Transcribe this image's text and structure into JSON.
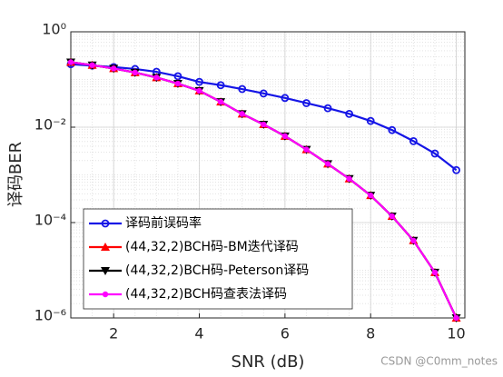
{
  "chart_data": {
    "type": "line",
    "x_label": "SNR (dB)",
    "y_label": "译码BER",
    "x": [
      1,
      1.5,
      2,
      2.5,
      3,
      3.5,
      4,
      4.5,
      5,
      5.5,
      6,
      6.5,
      7,
      7.5,
      8,
      8.5,
      9,
      9.5,
      10
    ],
    "series": [
      {
        "name": "译码前误码率",
        "color": "#1515e6",
        "marker": "circle",
        "values": [
          0.209,
          0.195,
          0.182,
          0.166,
          0.145,
          0.117,
          0.089,
          0.076,
          0.063,
          0.051,
          0.041,
          0.032,
          0.025,
          0.019,
          0.0135,
          0.0087,
          0.0051,
          0.0028,
          0.00126
        ]
      },
      {
        "name": "(44,32,2)BCH码-BM迭代译码",
        "color": "#ff0000",
        "marker": "triangle-up",
        "values": [
          0.23,
          0.2,
          0.17,
          0.14,
          0.11,
          0.082,
          0.058,
          0.034,
          0.019,
          0.0114,
          0.0065,
          0.0034,
          0.0017,
          0.00083,
          0.00037,
          0.000136,
          4.2e-05,
          9e-06,
          1e-06
        ]
      },
      {
        "name": "(44,32,2)BCH码-Peterson译码",
        "color": "#000000",
        "marker": "triangle-down",
        "values": [
          0.23,
          0.2,
          0.17,
          0.14,
          0.11,
          0.082,
          0.058,
          0.034,
          0.019,
          0.0114,
          0.0065,
          0.0034,
          0.0017,
          0.00083,
          0.00037,
          0.000136,
          4.2e-05,
          9e-06,
          1e-06
        ]
      },
      {
        "name": "(44,32,2)BCH码查表法译码",
        "color": "#ff00ff",
        "marker": "dot",
        "values": [
          0.23,
          0.2,
          0.17,
          0.14,
          0.11,
          0.082,
          0.058,
          0.034,
          0.019,
          0.0114,
          0.0065,
          0.0034,
          0.0017,
          0.00083,
          0.00037,
          0.000136,
          4.2e-05,
          9e-06,
          1e-06
        ]
      }
    ],
    "xlim": [
      1,
      10.2
    ],
    "xticks": [
      2,
      4,
      6,
      8,
      10
    ],
    "ylim": [
      1e-06,
      1
    ],
    "log_y": true,
    "yticks": [
      {
        "value": 1,
        "label": "10⁰"
      },
      {
        "value": 0.01,
        "label": "10⁻²"
      },
      {
        "value": 0.0001,
        "label": "10⁻⁴"
      },
      {
        "value": 1e-06,
        "label": "10⁻⁶"
      }
    ],
    "grid": true,
    "minor_grid": true,
    "legend": "lower left",
    "watermark": "CSDN @C0mm_notes"
  }
}
